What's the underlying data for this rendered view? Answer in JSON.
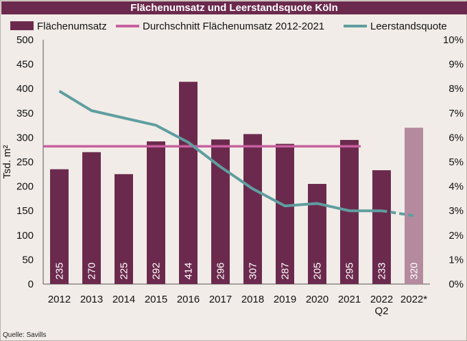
{
  "source": "Quelle: Savills",
  "colors": {
    "bar": "#6b2a4d",
    "bar_forecast": "#b58a9f",
    "average": "#c7609f",
    "vacancy": "#5f9ea0",
    "background": "#f1ece7",
    "title_bg": "#6b2a4d"
  },
  "chart_data": {
    "type": "bar",
    "title": "Flächenumsatz und Leerstandsquote Köln",
    "ylabel": "Tsd. m²",
    "ylim": [
      0,
      500
    ],
    "y_ticks": [
      "0",
      "50",
      "100",
      "150",
      "200",
      "250",
      "300",
      "350",
      "400",
      "450",
      "500"
    ],
    "y2lim": [
      0,
      10
    ],
    "y2_ticks": [
      "0%",
      "1%",
      "2%",
      "3%",
      "4%",
      "5%",
      "6%",
      "7%",
      "8%",
      "9%",
      "10%"
    ],
    "legend_position": "top",
    "categories": [
      [
        "2012"
      ],
      [
        "2013"
      ],
      [
        "2014"
      ],
      [
        "2015"
      ],
      [
        "2016"
      ],
      [
        "2017"
      ],
      [
        "2018"
      ],
      [
        "2019"
      ],
      [
        "2020"
      ],
      [
        "2021"
      ],
      [
        "2022",
        "Q2"
      ],
      [
        "2022*"
      ]
    ],
    "series": [
      {
        "name": "Flächenumsatz",
        "type": "bar",
        "values": [
          235,
          270,
          225,
          292,
          414,
          296,
          307,
          287,
          205,
          295,
          233,
          320
        ],
        "labels": [
          "235",
          "270",
          "225",
          "292",
          "414",
          "296",
          "307",
          "287",
          "205",
          "295",
          "233",
          "320"
        ],
        "forecast_index": 11
      },
      {
        "name": "Durchschnitt Flächenumsatz 2012-2021",
        "type": "line",
        "value": 282,
        "range": [
          0,
          9
        ]
      },
      {
        "name": "Leerstandsquote",
        "type": "line",
        "axis": "right",
        "values": [
          7.9,
          7.1,
          6.8,
          6.5,
          5.8,
          4.8,
          3.9,
          3.2,
          3.3,
          3.0,
          3.0,
          2.8
        ],
        "dashed_from_index": 10
      }
    ]
  }
}
